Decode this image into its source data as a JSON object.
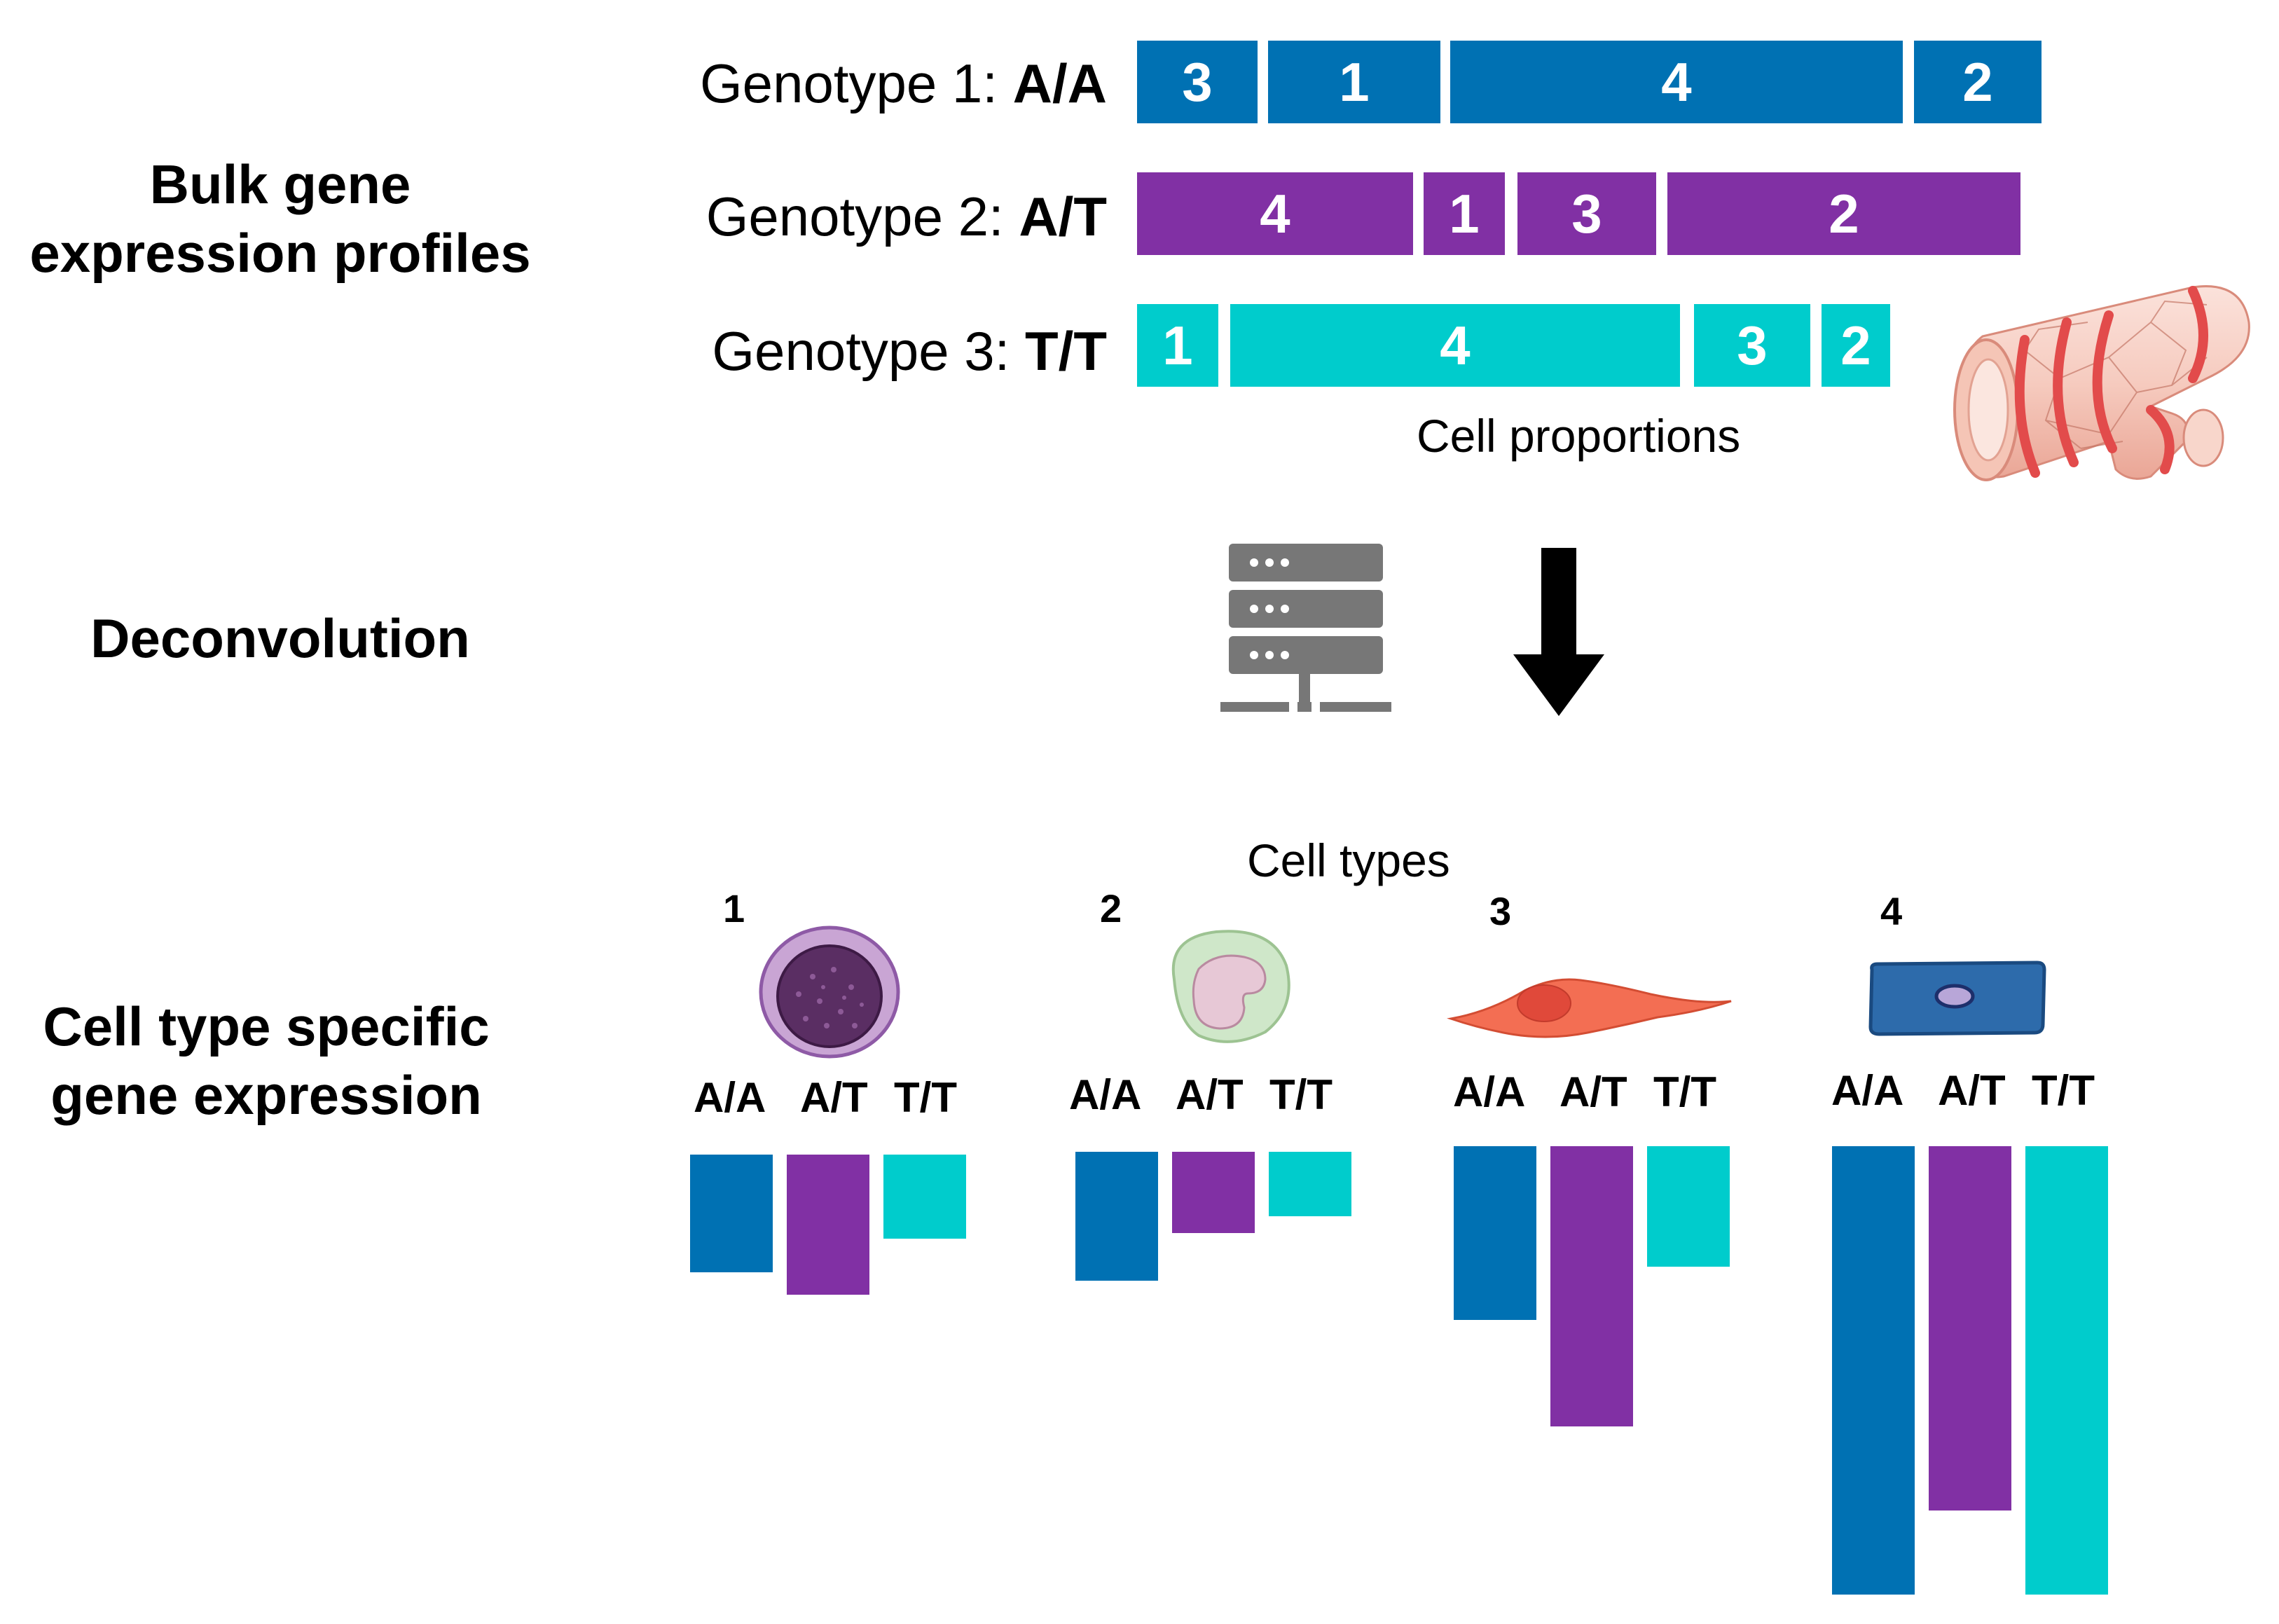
{
  "sections": {
    "bulk": [
      "Bulk gene",
      "expression profiles"
    ],
    "deconvolution": "Deconvolution",
    "cell_type": [
      "Cell type specific",
      "gene expression"
    ]
  },
  "colors": {
    "AA": "#0071b3",
    "AT": "#8130a4",
    "TT": "#00cccc"
  },
  "genotype_rows": [
    {
      "prefix": "Genotype 1: ",
      "allele": "A/A",
      "color_key": "AA",
      "segments": [
        "3",
        "1",
        "4",
        "2"
      ]
    },
    {
      "prefix": "Genotype 2: ",
      "allele": "A/T",
      "color_key": "AT",
      "segments": [
        "4",
        "1",
        "3",
        "2"
      ]
    },
    {
      "prefix": "Genotype 3: ",
      "allele": "T/T",
      "color_key": "TT",
      "segments": [
        "1",
        "4",
        "3",
        "2"
      ]
    }
  ],
  "cell_proportions_label": "Cell proportions",
  "cell_types_label": "Cell types",
  "cell_types": [
    {
      "number": "1",
      "icon": "lymphocyte-icon",
      "genotypes": [
        "A/A",
        "A/T",
        "T/T"
      ]
    },
    {
      "number": "2",
      "icon": "monocyte-icon",
      "genotypes": [
        "A/A",
        "A/T",
        "T/T"
      ]
    },
    {
      "number": "3",
      "icon": "fibroblast-icon",
      "genotypes": [
        "A/A",
        "A/T",
        "T/T"
      ]
    },
    {
      "number": "4",
      "icon": "endothelial-cell-icon",
      "genotypes": [
        "A/A",
        "A/T",
        "T/T"
      ]
    }
  ],
  "chart_data": {
    "type": "bar",
    "title": "Cell type specific gene expression",
    "categories": [
      "1",
      "2",
      "3",
      "4"
    ],
    "series": [
      {
        "name": "A/A",
        "values": [
          2.1,
          2.3,
          3.1,
          8.0
        ]
      },
      {
        "name": "A/T",
        "values": [
          2.5,
          1.45,
          5.0,
          6.5
        ]
      },
      {
        "name": "T/T",
        "values": [
          1.5,
          1.15,
          2.15,
          8.0
        ]
      }
    ],
    "xlabel": "",
    "ylabel": "",
    "grid": false,
    "legend": "none"
  }
}
